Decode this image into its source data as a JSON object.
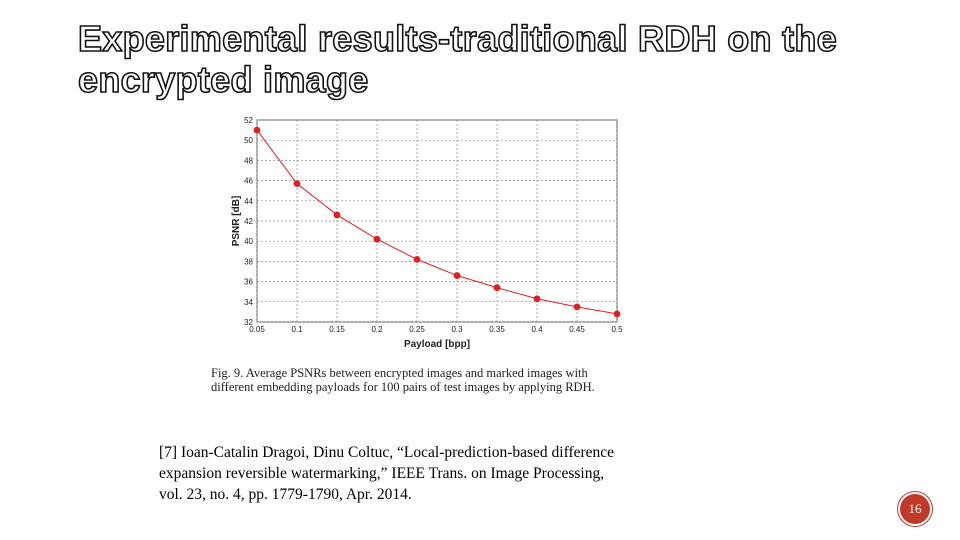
{
  "title": {
    "line1": "Experimental results-traditional RDH on the",
    "line2": "encrypted image"
  },
  "chart_data": {
    "type": "line",
    "x": [
      0.05,
      0.1,
      0.15,
      0.2,
      0.25,
      0.3,
      0.35,
      0.4,
      0.45,
      0.5
    ],
    "y": [
      51.0,
      45.7,
      42.6,
      40.2,
      38.2,
      36.6,
      35.4,
      34.3,
      33.5,
      32.8
    ],
    "x_tick_labels": [
      "0.05",
      "0.1",
      "0.15",
      "0.2",
      "0.25",
      "0.3",
      "0.35",
      "0.4",
      "0.45",
      "0.5"
    ],
    "y_ticks": [
      32,
      34,
      36,
      38,
      40,
      42,
      44,
      46,
      48,
      50,
      52
    ],
    "xlabel": "Payload [bpp]",
    "ylabel": "PSNR [dB]",
    "xlim": [
      0.05,
      0.5
    ],
    "ylim": [
      32,
      52
    ],
    "grid": true,
    "series_color": "#e02020"
  },
  "caption": {
    "line1": "Fig. 9.   Average PSNRs between encrypted images and marked images with",
    "line2": "different embedding payloads for 100 pairs of test images by applying RDH."
  },
  "reference": {
    "line1": "[7] Ioan-Catalin Dragoi, Dinu Coltuc, “Local-prediction-based difference",
    "line2": "expansion reversible watermarking,” IEEE Trans. on Image Processing,",
    "line3": "vol. 23, no. 4, pp. 1779-1790, Apr. 2014."
  },
  "page_number": "16",
  "accent_color": "#c0392b"
}
